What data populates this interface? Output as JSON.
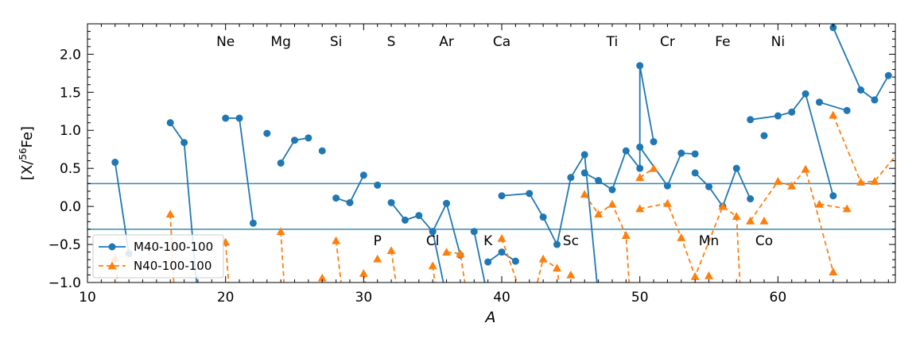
{
  "chart_data": {
    "type": "line",
    "title": "",
    "xlabel": "A",
    "ylabel_main": "[X/",
    "ylabel_sup": "56",
    "ylabel_tail": "Fe]",
    "xlim": [
      10,
      68.5
    ],
    "ylim": [
      -1.0,
      2.4
    ],
    "xticks": [
      10,
      20,
      30,
      40,
      50,
      60
    ],
    "yticks": [
      -1.0,
      -0.5,
      0.0,
      0.5,
      1.0,
      1.5,
      2.0
    ],
    "xtick_labels": [
      "10",
      "20",
      "30",
      "40",
      "50",
      "60"
    ],
    "ytick_labels": [
      "−1.0",
      "−0.5",
      "0.0",
      "0.5",
      "1.0",
      "1.5",
      "2.0"
    ],
    "hlines": [
      0.3,
      -0.3
    ],
    "grid": false,
    "legend_position": "lower-left",
    "element_labels_top": [
      {
        "text": "Ne",
        "x": 20
      },
      {
        "text": "Mg",
        "x": 24
      },
      {
        "text": "Si",
        "x": 28
      },
      {
        "text": "S",
        "x": 32
      },
      {
        "text": "Ar",
        "x": 36
      },
      {
        "text": "Ca",
        "x": 40
      },
      {
        "text": "Ti",
        "x": 48
      },
      {
        "text": "Cr",
        "x": 52
      },
      {
        "text": "Fe",
        "x": 56
      },
      {
        "text": "Ni",
        "x": 60
      }
    ],
    "element_labels_bottom": [
      {
        "text": "P",
        "x": 31
      },
      {
        "text": "Cl",
        "x": 35
      },
      {
        "text": "K",
        "x": 39
      },
      {
        "text": "Sc",
        "x": 45
      },
      {
        "text": "Mn",
        "x": 55
      },
      {
        "text": "Co",
        "x": 59
      }
    ],
    "series": [
      {
        "name": "M40-100-100",
        "color": "#1f77b4",
        "marker": "circle",
        "linestyle": "solid",
        "segments": [
          [
            [
              12,
              0.58
            ],
            [
              13,
              -0.62
            ]
          ],
          [
            [
              16,
              1.1
            ],
            [
              17,
              0.84
            ],
            [
              18,
              -1.2
            ]
          ],
          [
            [
              20,
              1.16
            ],
            [
              21,
              1.16
            ],
            [
              22,
              -0.22
            ]
          ],
          [
            [
              23,
              0.96
            ]
          ],
          [
            [
              24,
              0.57
            ],
            [
              25,
              0.87
            ],
            [
              26,
              0.9
            ]
          ],
          [
            [
              27,
              0.73
            ]
          ],
          [
            [
              28,
              0.11
            ],
            [
              29,
              0.05
            ],
            [
              30,
              0.41
            ]
          ],
          [
            [
              31,
              0.28
            ]
          ],
          [
            [
              32,
              0.05
            ],
            [
              33,
              -0.18
            ],
            [
              34,
              -0.12
            ],
            [
              35,
              -0.33
            ],
            [
              36,
              0.04
            ],
            [
              37,
              -0.64
            ]
          ],
          [
            [
              35,
              -0.33
            ],
            [
              36,
              -1.2
            ]
          ],
          [
            [
              38,
              -0.33
            ],
            [
              39,
              -1.2
            ]
          ],
          [
            [
              39,
              -0.73
            ],
            [
              40,
              -0.6
            ],
            [
              41,
              -0.72
            ]
          ],
          [
            [
              40,
              0.14
            ],
            [
              42,
              0.17
            ],
            [
              43,
              -0.14
            ],
            [
              44,
              -0.5
            ],
            [
              45,
              0.38
            ],
            [
              46,
              0.68
            ],
            [
              47,
              -1.2
            ]
          ],
          [
            [
              46,
              0.44
            ],
            [
              47,
              0.34
            ],
            [
              48,
              0.22
            ],
            [
              49,
              0.73
            ],
            [
              50,
              0.5
            ],
            [
              50,
              1.85
            ],
            [
              51,
              0.85
            ]
          ],
          [
            [
              50,
              0.78
            ],
            [
              52,
              0.27
            ],
            [
              53,
              0.7
            ],
            [
              54,
              0.69
            ]
          ],
          [
            [
              54,
              0.44
            ],
            [
              55,
              0.26
            ],
            [
              56,
              0.0
            ],
            [
              57,
              0.5
            ],
            [
              58,
              0.1
            ]
          ],
          [
            [
              58,
              1.14
            ],
            [
              60,
              1.19
            ],
            [
              61,
              1.24
            ],
            [
              62,
              1.48
            ],
            [
              64,
              0.14
            ]
          ],
          [
            [
              59,
              0.93
            ]
          ],
          [
            [
              63,
              1.37
            ],
            [
              65,
              1.26
            ]
          ],
          [
            [
              64,
              2.35
            ],
            [
              66,
              1.53
            ],
            [
              67,
              1.4
            ],
            [
              68,
              1.72
            ]
          ]
        ]
      },
      {
        "name": "N40-100-100",
        "color": "#ff7f0e",
        "marker": "triangle",
        "linestyle": "dashed",
        "segments": [
          [
            [
              12,
              -0.68
            ],
            [
              12.3,
              -1.2
            ]
          ],
          [
            [
              16,
              -0.1
            ],
            [
              16.3,
              -1.2
            ]
          ],
          [
            [
              20,
              -0.47
            ],
            [
              20.3,
              -1.2
            ]
          ],
          [
            [
              24,
              -0.33
            ],
            [
              24.3,
              -1.2
            ]
          ],
          [
            [
              27,
              -0.94
            ]
          ],
          [
            [
              28,
              -0.45
            ],
            [
              28.5,
              -1.2
            ]
          ],
          [
            [
              30,
              -0.88
            ],
            [
              30.3,
              -1.2
            ]
          ],
          [
            [
              31,
              -0.69
            ]
          ],
          [
            [
              32,
              -0.58
            ],
            [
              32.5,
              -1.2
            ]
          ],
          [
            [
              35,
              -0.78
            ],
            [
              35.3,
              -1.2
            ]
          ],
          [
            [
              36,
              -0.6
            ],
            [
              37,
              -0.62
            ],
            [
              37.5,
              -1.2
            ]
          ],
          [
            [
              40,
              -0.42
            ],
            [
              41.5,
              -1.2
            ]
          ],
          [
            [
              42.3,
              -1.2
            ],
            [
              43,
              -0.69
            ],
            [
              44,
              -0.81
            ],
            [
              44.3,
              -1.2
            ]
          ],
          [
            [
              45,
              -0.9
            ]
          ],
          [
            [
              46,
              0.16
            ],
            [
              47,
              -0.1
            ],
            [
              48,
              0.03
            ],
            [
              49,
              -0.38
            ],
            [
              49.3,
              -1.2
            ]
          ],
          [
            [
              50,
              0.38
            ],
            [
              51,
              0.5
            ]
          ],
          [
            [
              50,
              -0.03
            ],
            [
              52,
              0.04
            ],
            [
              53,
              -0.41
            ],
            [
              54,
              -0.92
            ],
            [
              56,
              0.0
            ],
            [
              57,
              -0.13
            ],
            [
              57.3,
              -1.2
            ]
          ],
          [
            [
              55,
              -0.91
            ]
          ],
          [
            [
              58,
              -0.19
            ],
            [
              60,
              0.33
            ],
            [
              61,
              0.27
            ],
            [
              62,
              0.49
            ],
            [
              64,
              -0.86
            ]
          ],
          [
            [
              59,
              -0.19
            ]
          ],
          [
            [
              63,
              0.03
            ],
            [
              65,
              -0.03
            ]
          ],
          [
            [
              64,
              1.2
            ],
            [
              66,
              0.32
            ],
            [
              67,
              0.33
            ],
            [
              68.5,
              0.66
            ]
          ]
        ]
      }
    ]
  }
}
